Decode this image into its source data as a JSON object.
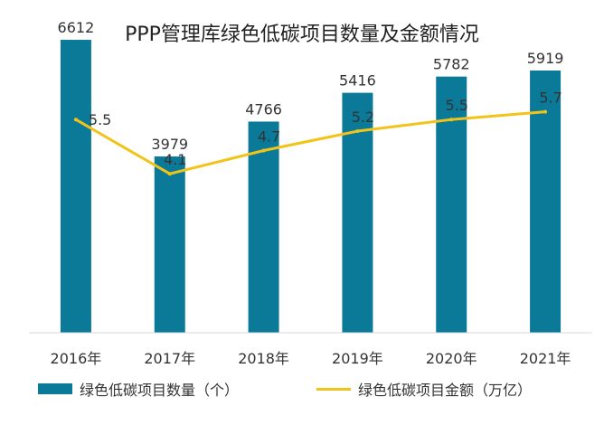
{
  "chart_data": {
    "type": "bar",
    "title": "PPP管理库绿色低碳项目数量及金额情况",
    "categories": [
      "2016年",
      "2017年",
      "2018年",
      "2019年",
      "2020年",
      "2021年"
    ],
    "series": [
      {
        "name": "绿色低碳项目数量（个）",
        "type": "bar",
        "axis": "left",
        "color": "#0b7a99",
        "values": [
          6612,
          3979,
          4766,
          5416,
          5782,
          5919
        ]
      },
      {
        "name": "绿色低碳项目金额（万亿）",
        "type": "line",
        "axis": "right",
        "color": "#f2c318",
        "values": [
          5.5,
          4.1,
          4.7,
          5.2,
          5.5,
          5.7
        ]
      }
    ],
    "ylim_bar": [
      0,
      7000
    ],
    "ylim_line": [
      0,
      8
    ],
    "grid": false,
    "legend_position": "bottom"
  }
}
